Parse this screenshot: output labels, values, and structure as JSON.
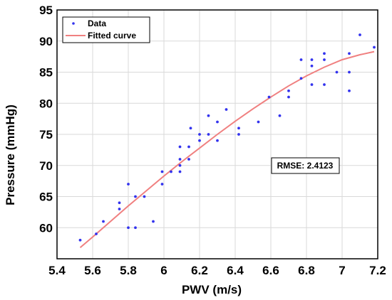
{
  "chart_data": {
    "type": "scatter",
    "xlabel": "PWV (m/s)",
    "ylabel": "Pressure (mmHg)",
    "xlim": [
      5.4,
      7.2
    ],
    "ylim": [
      55,
      95
    ],
    "xticks": [
      "5.4",
      "5.6",
      "5.8",
      "6",
      "6.2",
      "6.4",
      "6.6",
      "6.8",
      "7",
      "7.2"
    ],
    "yticks": [
      "60",
      "65",
      "70",
      "75",
      "80",
      "85",
      "90",
      "95"
    ],
    "grid": true,
    "legend_position": "top-left",
    "legend": {
      "data_label": "Data",
      "fit_label": "Fitted curve"
    },
    "annotation": "RMSE: 2.4123",
    "colors": {
      "points": "#3333ee",
      "fit": "#f08080",
      "grid": "#d9d9d9"
    },
    "series": [
      {
        "name": "Data",
        "kind": "points",
        "points": [
          [
            5.53,
            58
          ],
          [
            5.62,
            59
          ],
          [
            5.66,
            61
          ],
          [
            5.75,
            63
          ],
          [
            5.75,
            64
          ],
          [
            5.8,
            67
          ],
          [
            5.8,
            60
          ],
          [
            5.84,
            65
          ],
          [
            5.84,
            60
          ],
          [
            5.89,
            65
          ],
          [
            5.94,
            61
          ],
          [
            5.99,
            67
          ],
          [
            5.99,
            69
          ],
          [
            6.04,
            69
          ],
          [
            6.09,
            69
          ],
          [
            6.09,
            70
          ],
          [
            6.09,
            71
          ],
          [
            6.09,
            73
          ],
          [
            6.14,
            73
          ],
          [
            6.14,
            71
          ],
          [
            6.15,
            76
          ],
          [
            6.2,
            75
          ],
          [
            6.2,
            74
          ],
          [
            6.25,
            75
          ],
          [
            6.25,
            78
          ],
          [
            6.3,
            74
          ],
          [
            6.3,
            77
          ],
          [
            6.35,
            79
          ],
          [
            6.42,
            76
          ],
          [
            6.42,
            75
          ],
          [
            6.53,
            77
          ],
          [
            6.59,
            81
          ],
          [
            6.65,
            78
          ],
          [
            6.7,
            81
          ],
          [
            6.7,
            82
          ],
          [
            6.77,
            87
          ],
          [
            6.77,
            84
          ],
          [
            6.83,
            86
          ],
          [
            6.83,
            87
          ],
          [
            6.83,
            83
          ],
          [
            6.9,
            83
          ],
          [
            6.9,
            87
          ],
          [
            6.9,
            88
          ],
          [
            6.97,
            85
          ],
          [
            7.04,
            88
          ],
          [
            7.04,
            85
          ],
          [
            7.04,
            82
          ],
          [
            7.1,
            91
          ],
          [
            7.18,
            89
          ]
        ]
      },
      {
        "name": "Fitted curve",
        "kind": "line",
        "points": [
          [
            5.53,
            56.8
          ],
          [
            5.6,
            58.5
          ],
          [
            5.7,
            61.0
          ],
          [
            5.8,
            63.5
          ],
          [
            5.9,
            65.9
          ],
          [
            6.0,
            68.3
          ],
          [
            6.1,
            70.6
          ],
          [
            6.2,
            72.8
          ],
          [
            6.3,
            75.0
          ],
          [
            6.4,
            77.1
          ],
          [
            6.5,
            79.1
          ],
          [
            6.6,
            81.0
          ],
          [
            6.7,
            82.8
          ],
          [
            6.8,
            84.4
          ],
          [
            6.9,
            85.8
          ],
          [
            7.0,
            87.0
          ],
          [
            7.1,
            87.8
          ],
          [
            7.18,
            88.3
          ]
        ]
      }
    ]
  }
}
